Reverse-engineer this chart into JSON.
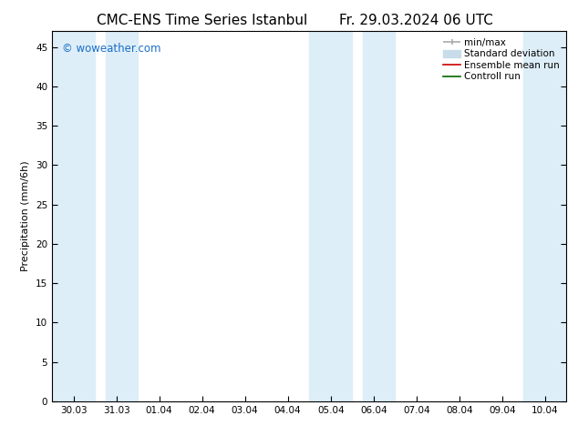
{
  "title_left": "CMC-ENS Time Series Istanbul",
  "title_right": "Fr. 29.03.2024 06 UTC",
  "ylabel": "Precipitation (mm/6h)",
  "ylim": [
    0,
    47
  ],
  "yticks": [
    0,
    5,
    10,
    15,
    20,
    25,
    30,
    35,
    40,
    45
  ],
  "x_labels": [
    "30.03",
    "31.03",
    "01.04",
    "02.04",
    "03.04",
    "04.04",
    "05.04",
    "06.04",
    "07.04",
    "08.04",
    "09.04",
    "10.04"
  ],
  "x_positions": [
    0,
    1,
    2,
    3,
    4,
    5,
    6,
    7,
    8,
    9,
    10,
    11
  ],
  "shaded_regions": [
    {
      "xmin": -0.5,
      "xmax": 0.5,
      "color": "#ddeef8"
    },
    {
      "xmin": 0.75,
      "xmax": 1.5,
      "color": "#ddeef8"
    },
    {
      "xmin": 5.5,
      "xmax": 6.5,
      "color": "#ddeef8"
    },
    {
      "xmin": 6.75,
      "xmax": 7.5,
      "color": "#ddeef8"
    },
    {
      "xmin": 10.5,
      "xmax": 11.5,
      "color": "#ddeef8"
    }
  ],
  "watermark_text": "© woweather.com",
  "watermark_color": "#1a6ec8",
  "bg_color": "#ffffff",
  "plot_bg_color": "#ffffff",
  "title_fontsize": 11,
  "label_fontsize": 8,
  "tick_fontsize": 7.5,
  "legend_fontsize": 7.5,
  "minmax_color": "#aaaaaa",
  "std_color": "#c8dcea",
  "ensemble_color": "#cc0000",
  "control_color": "#006600"
}
